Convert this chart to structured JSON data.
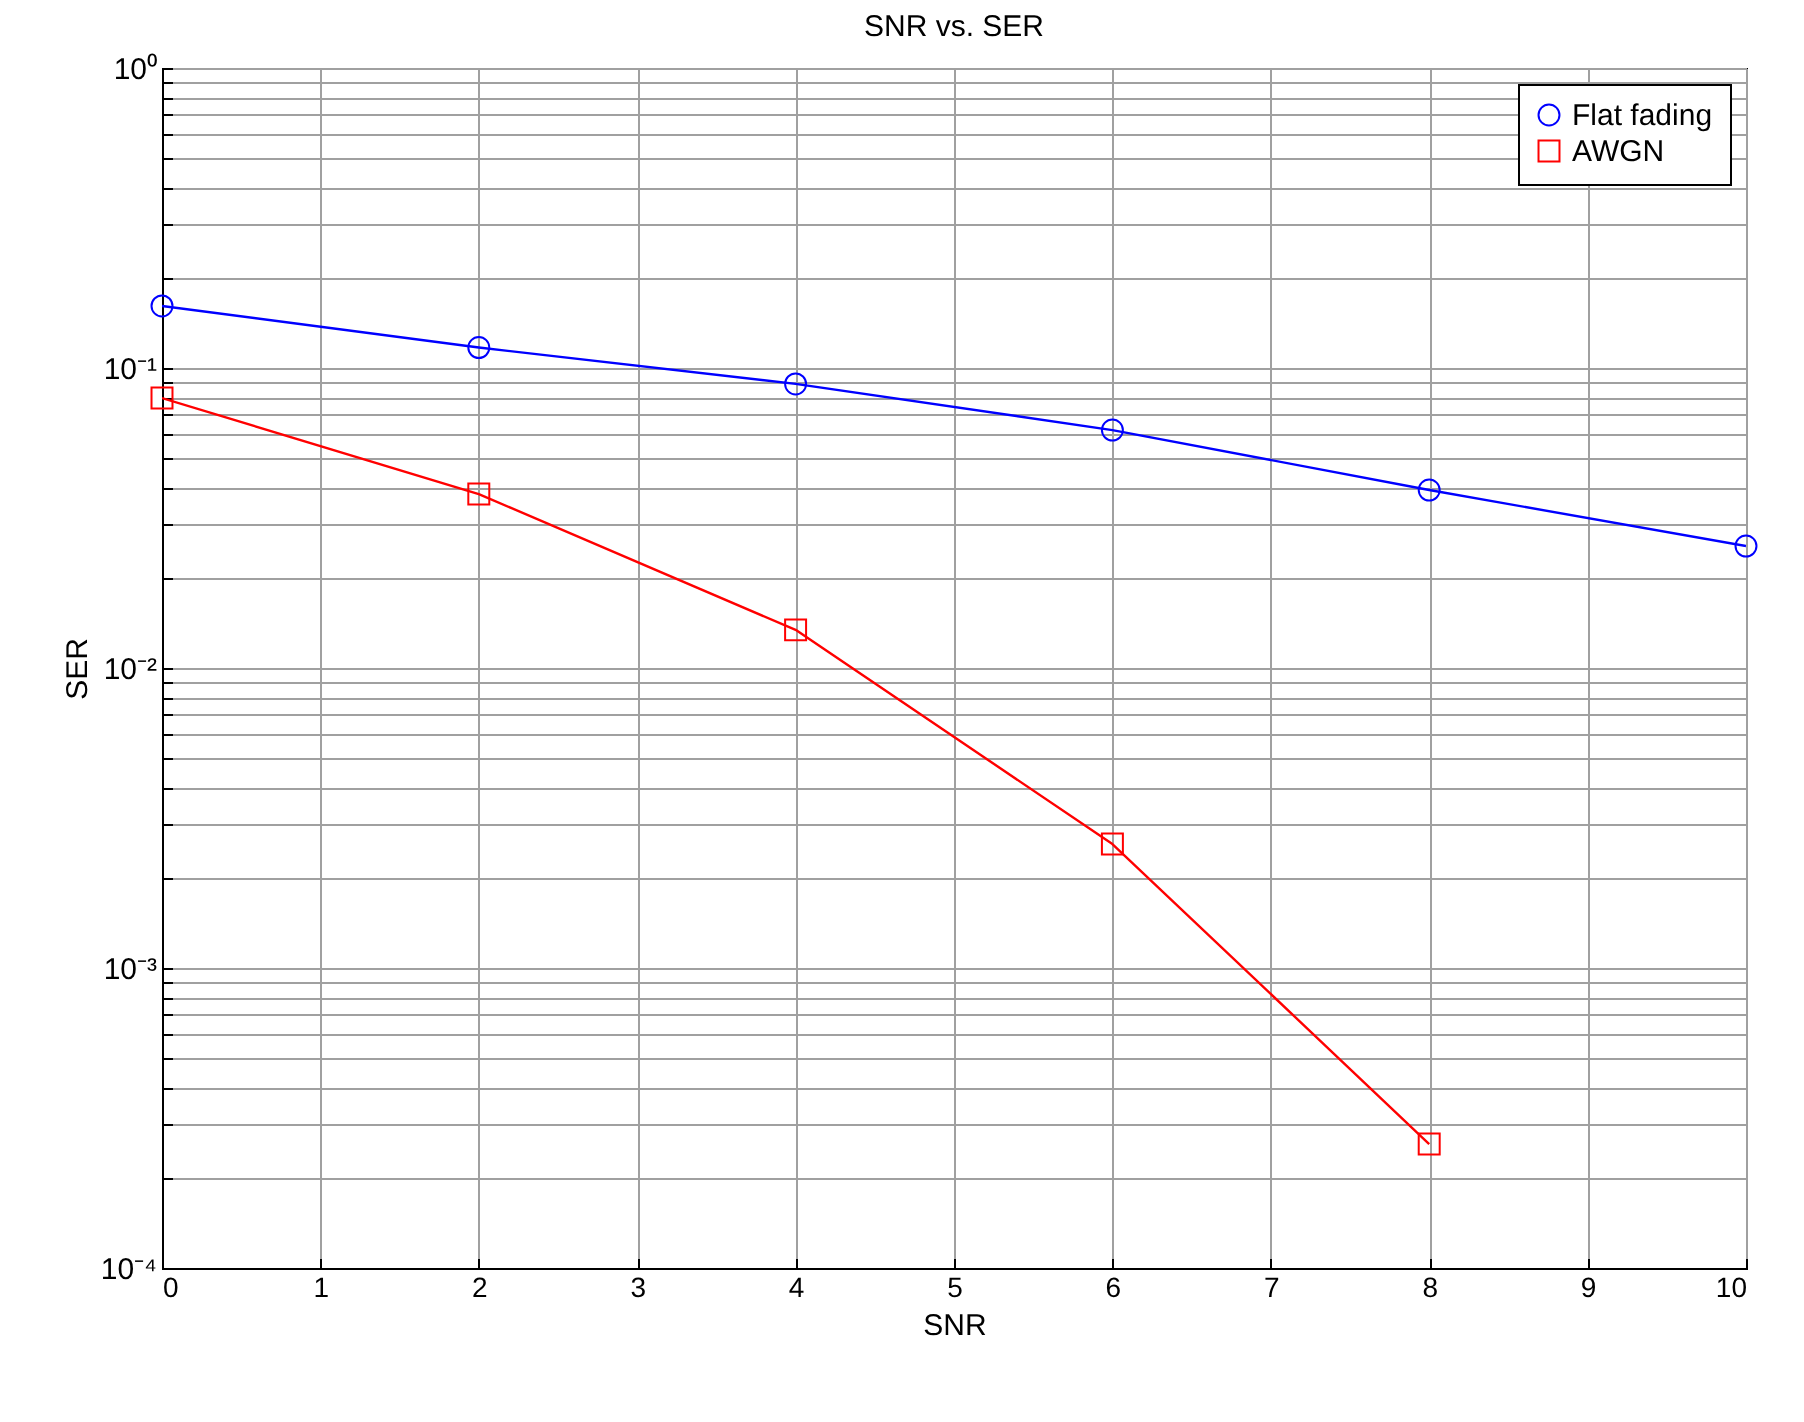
{
  "chart_data": {
    "type": "line",
    "title": "SNR vs. SER",
    "xlabel": "SNR",
    "ylabel": "SER",
    "log": "y",
    "grid": true,
    "legend": "top right",
    "line_style": "solid",
    "xlim": [
      0,
      10
    ],
    "xticks": [
      0,
      1,
      2,
      3,
      4,
      5,
      6,
      7,
      8,
      9,
      10
    ],
    "ylim": [
      0.0001,
      1
    ],
    "yticks": [
      {
        "value": 0.0001,
        "label": "10⁻⁴"
      },
      {
        "value": 0.0002,
        "label": null
      },
      {
        "value": 0.0003,
        "label": null
      },
      {
        "value": 0.0004,
        "label": null
      },
      {
        "value": 0.0005,
        "label": null
      },
      {
        "value": 0.0006,
        "label": null
      },
      {
        "value": 0.0007,
        "label": null
      },
      {
        "value": 0.0008,
        "label": null
      },
      {
        "value": 0.0009,
        "label": null
      },
      {
        "value": 0.001,
        "label": "10⁻³"
      },
      {
        "value": 0.002,
        "label": null
      },
      {
        "value": 0.003,
        "label": null
      },
      {
        "value": 0.004,
        "label": null
      },
      {
        "value": 0.005,
        "label": null
      },
      {
        "value": 0.006,
        "label": null
      },
      {
        "value": 0.007,
        "label": null
      },
      {
        "value": 0.008,
        "label": null
      },
      {
        "value": 0.009,
        "label": null
      },
      {
        "value": 0.01,
        "label": "10⁻²"
      },
      {
        "value": 0.02,
        "label": null
      },
      {
        "value": 0.03,
        "label": null
      },
      {
        "value": 0.04,
        "label": null
      },
      {
        "value": 0.05,
        "label": null
      },
      {
        "value": 0.06,
        "label": null
      },
      {
        "value": 0.07,
        "label": null
      },
      {
        "value": 0.08,
        "label": null
      },
      {
        "value": 0.09,
        "label": null
      },
      {
        "value": 0.1,
        "label": "10⁻¹"
      },
      {
        "value": 0.2,
        "label": null
      },
      {
        "value": 0.3,
        "label": null
      },
      {
        "value": 0.4,
        "label": null
      },
      {
        "value": 0.5,
        "label": null
      },
      {
        "value": 0.6,
        "label": null
      },
      {
        "value": 0.7,
        "label": null
      },
      {
        "value": 0.8,
        "label": null
      },
      {
        "value": 0.9,
        "label": null
      },
      {
        "value": 1,
        "label": "10⁰"
      }
    ],
    "series": [
      {
        "name": "Flat fading",
        "color": "#0000ff",
        "marker": "circle",
        "x": [
          0,
          2,
          4,
          6,
          8,
          10
        ],
        "values": [
          0.161,
          0.117,
          0.0885,
          0.0621,
          0.0392,
          0.0255
        ]
      },
      {
        "name": "AWGN",
        "color": "#ff0000",
        "marker": "square",
        "x": [
          0,
          2,
          4,
          6,
          8
        ],
        "values": [
          0.0794,
          0.038,
          0.0134,
          0.00259,
          0.000259
        ]
      }
    ]
  }
}
